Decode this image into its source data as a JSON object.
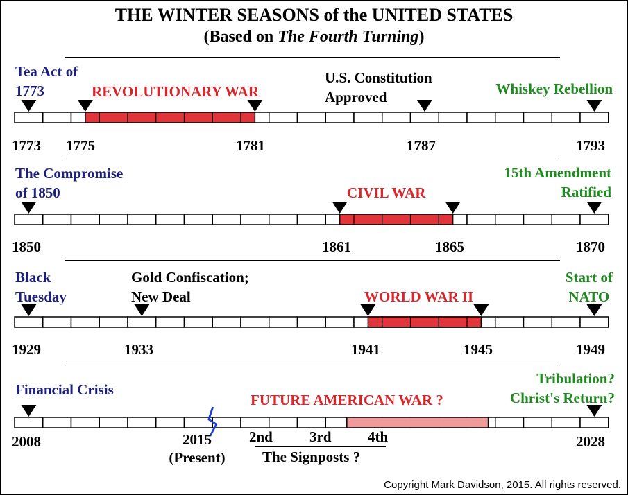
{
  "title": "THE WINTER SEASONS of the UNITED STATES",
  "subtitle_prefix": "(Based on ",
  "subtitle_book": "The Fourth Turning",
  "subtitle_suffix": ")",
  "copyright": "Copyright Mark Davidson, 2015. All rights reserved.",
  "colors": {
    "navy": "#1c1f7d",
    "red_text": "#d9262b",
    "war_bar": "#e0353a",
    "future_bar": "#f09b9b",
    "green": "#1f8a1f",
    "squiggle": "#1b3fd6"
  },
  "timelines": [
    {
      "id": "revolution",
      "start_year": 1773,
      "end_year": 1793,
      "war": {
        "label": "REVOLUTIONARY WAR",
        "start": 1775,
        "end": 1781,
        "style": "solid"
      },
      "events": [
        {
          "label_lines": [
            "Tea Act of",
            "1773"
          ],
          "year": 1773,
          "color": "navy"
        },
        {
          "label_lines": [
            "U.S. Constitution",
            "Approved"
          ],
          "year": 1787,
          "color": "black"
        },
        {
          "label_lines": [
            "Whiskey Rebellion"
          ],
          "year": 1793,
          "color": "green"
        }
      ],
      "year_labels": [
        "1773",
        "1775",
        "1781",
        "1787",
        "1793"
      ]
    },
    {
      "id": "civil",
      "start_year": 1850,
      "end_year": 1870,
      "war": {
        "label": "CIVIL WAR",
        "start": 1861,
        "end": 1865,
        "style": "solid"
      },
      "events": [
        {
          "label_lines": [
            "The Compromise",
            "of 1850"
          ],
          "year": 1850,
          "color": "navy"
        },
        {
          "label_lines": [
            "15th Amendment",
            "Ratified"
          ],
          "year": 1870,
          "color": "green"
        }
      ],
      "year_labels": [
        "1850",
        "1861",
        "1865",
        "1870"
      ]
    },
    {
      "id": "ww2",
      "start_year": 1929,
      "end_year": 1949,
      "war": {
        "label": "WORLD WAR II",
        "start": 1941,
        "end": 1945,
        "style": "solid"
      },
      "events": [
        {
          "label_lines": [
            "Black",
            "Tuesday"
          ],
          "year": 1929,
          "color": "navy"
        },
        {
          "label_lines": [
            "Gold Confiscation;",
            "New Deal"
          ],
          "year": 1933,
          "color": "black"
        },
        {
          "label_lines": [
            "Start of",
            "NATO"
          ],
          "year": 1949,
          "color": "green"
        }
      ],
      "year_labels": [
        "1929",
        "1933",
        "1941",
        "1945",
        "1949"
      ]
    },
    {
      "id": "future",
      "start_year": 2008,
      "end_year": 2028,
      "war": {
        "label": "FUTURE AMERICAN WAR ?",
        "start": 2019.25,
        "end": 2024.25,
        "style": "light"
      },
      "events": [
        {
          "label_lines": [
            "Financial Crisis"
          ],
          "year": 2008,
          "color": "navy"
        },
        {
          "label_lines": [
            "Tribulation?",
            "Christ's Return?"
          ],
          "year": 2028,
          "color": "green"
        }
      ],
      "present_marker": {
        "year": 2015,
        "label_lines": [
          "2015",
          "(Present)"
        ]
      },
      "signposts": {
        "labels": [
          "2nd",
          "3rd",
          "4th"
        ],
        "caption": "The Signposts ?"
      },
      "year_labels": [
        "2008",
        "2028"
      ]
    }
  ]
}
